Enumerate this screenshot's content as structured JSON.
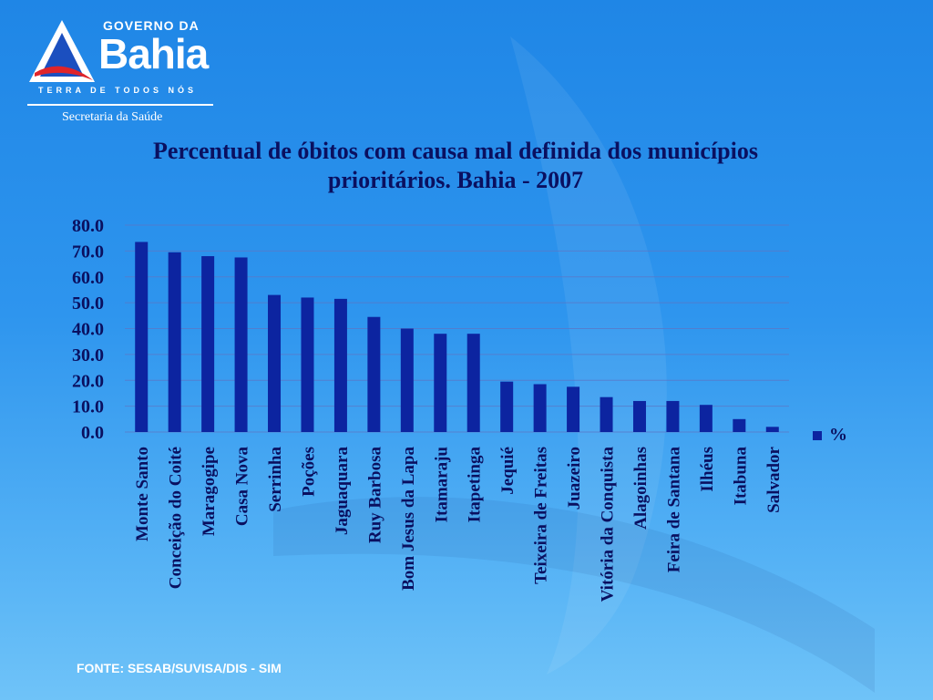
{
  "logo": {
    "governo": "GOVERNO DA",
    "bahia": "Bahia",
    "tagline": "TERRA DE TODOS NÓS",
    "secretaria": "Secretaria da Saúde"
  },
  "source": "FONTE: SESAB/SUVISA/DIS - SIM",
  "colors": {
    "bar": "#0c24a0",
    "text": "#0a1060",
    "grid": "#5a78c8"
  },
  "chart_data": {
    "type": "bar",
    "title": "Percentual de óbitos com causa mal definida dos municípios prioritários. Bahia - 2007",
    "categories": [
      "Monte Santo",
      "Conceição do Coité",
      "Maragogipe",
      "Casa Nova",
      "Serrinha",
      "Poções",
      "Jaguaquara",
      "Ruy Barbosa",
      "Bom Jesus da Lapa",
      "Itamaraju",
      "Itapetinga",
      "Jequié",
      "Teixeira de Freitas",
      "Juazeiro",
      "Vitória da Conquista",
      "Alagoinhas",
      "Feira de Santana",
      "Ilhéus",
      "Itabuna",
      "Salvador"
    ],
    "series": [
      {
        "name": "%",
        "values": [
          73.5,
          69.5,
          68.0,
          67.5,
          53.0,
          52.0,
          51.5,
          44.5,
          40.0,
          38.0,
          38.0,
          19.5,
          18.5,
          17.5,
          13.5,
          12.0,
          12.0,
          10.5,
          5.0,
          2.0
        ]
      }
    ],
    "yticks": [
      "0.0",
      "10.0",
      "20.0",
      "30.0",
      "40.0",
      "50.0",
      "60.0",
      "70.0",
      "80.0"
    ],
    "ylim": [
      0,
      80
    ],
    "grid": true,
    "legend_position": "right"
  }
}
